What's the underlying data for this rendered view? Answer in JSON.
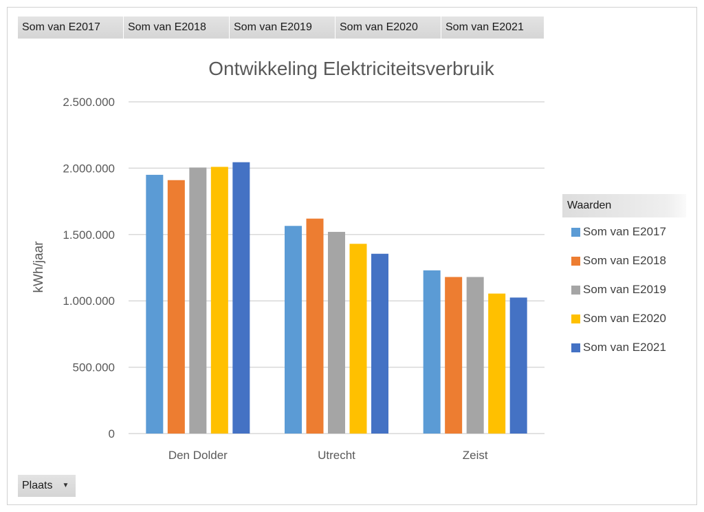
{
  "field_buttons": [
    "Som van E2017",
    "Som van E2018",
    "Som van E2019",
    "Som van E2020",
    "Som van E2021"
  ],
  "legend": {
    "header": "Waarden"
  },
  "axis_field": {
    "label": "Plaats",
    "icon": "dropdown-arrow-icon"
  },
  "colors": {
    "Som van E2017": "#5b9bd5",
    "Som van E2018": "#ed7d31",
    "Som van E2019": "#a5a5a5",
    "Som van E2020": "#ffc000",
    "Som van E2021": "#4472c4",
    "gridline": "#d9d9d9",
    "text": "#595959"
  },
  "chart_data": {
    "type": "bar",
    "title": "Ontwikkeling Elektriciteitsverbruik",
    "xlabel": "",
    "ylabel": "kWh/jaar",
    "ylim": [
      0,
      2500000
    ],
    "yticks": [
      0,
      500000,
      1000000,
      1500000,
      2000000,
      2500000
    ],
    "ytick_labels": [
      "0",
      "500.000",
      "1.000.000",
      "1.500.000",
      "2.000.000",
      "2.500.000"
    ],
    "grid": true,
    "legend_position": "right",
    "categories": [
      "Den Dolder",
      "Utrecht",
      "Zeist"
    ],
    "series": [
      {
        "name": "Som van E2017",
        "values": [
          1950000,
          1565000,
          1230000
        ]
      },
      {
        "name": "Som van E2018",
        "values": [
          1910000,
          1620000,
          1180000
        ]
      },
      {
        "name": "Som van E2019",
        "values": [
          2005000,
          1520000,
          1180000
        ]
      },
      {
        "name": "Som van E2020",
        "values": [
          2010000,
          1430000,
          1055000
        ]
      },
      {
        "name": "Som van E2021",
        "values": [
          2045000,
          1355000,
          1025000
        ]
      }
    ]
  }
}
